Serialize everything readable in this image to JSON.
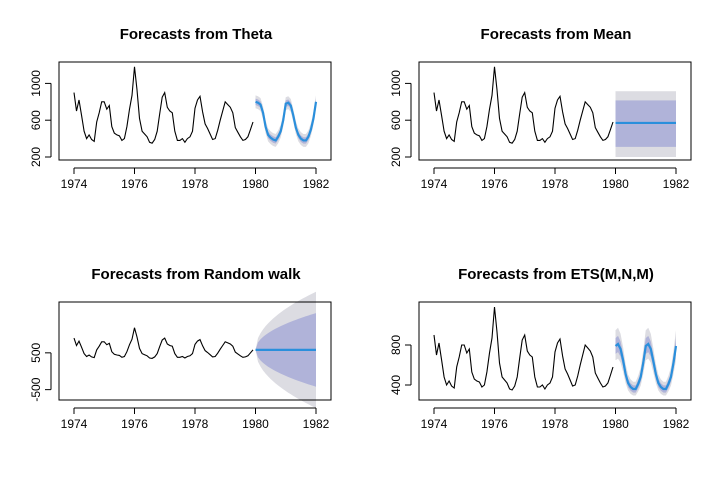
{
  "colors": {
    "history": "#000000",
    "forecast": "#2a8fdc",
    "band80": "#b0b3d9",
    "band95": "#dcdce2",
    "axis": "#000000"
  },
  "chart_data": [
    {
      "type": "line",
      "title": "Forecasts from Theta",
      "xlabel": "",
      "ylabel": "",
      "xlim": [
        1974,
        1982
      ],
      "ylim": [
        200,
        1200
      ],
      "x_ticks": [
        "1974",
        "1976",
        "1978",
        "1980",
        "1982"
      ],
      "y_ticks": [
        "200",
        "600",
        "1000"
      ],
      "history": {
        "start": 1974,
        "step": 0.08333,
        "values": [
          900,
          700,
          820,
          650,
          480,
          400,
          440,
          390,
          370,
          580,
          680,
          800,
          800,
          720,
          760,
          530,
          460,
          440,
          430,
          380,
          400,
          530,
          720,
          870,
          1180,
          930,
          620,
          480,
          450,
          420,
          360,
          350,
          390,
          480,
          670,
          850,
          900,
          740,
          700,
          680,
          480,
          380,
          380,
          400,
          360,
          400,
          420,
          480,
          730,
          820,
          860,
          690,
          560,
          510,
          450,
          390,
          400,
          490,
          600,
          700,
          800,
          770,
          740,
          680,
          520,
          470,
          420,
          380,
          390,
          420,
          500,
          580
        ]
      },
      "forecast": {
        "start": 1980,
        "step": 0.08333,
        "mean": [
          800,
          790,
          770,
          680,
          530,
          440,
          410,
          390,
          380,
          420,
          480,
          600,
          780,
          790,
          760,
          650,
          520,
          440,
          400,
          380,
          380,
          420,
          500,
          620,
          800
        ],
        "lo80_offset": 35,
        "hi80_offset": 35,
        "lo95_offset": 70,
        "hi95_offset": 70
      }
    },
    {
      "type": "line",
      "title": "Forecasts from Mean",
      "xlabel": "",
      "ylabel": "",
      "xlim": [
        1974,
        1982
      ],
      "ylim": [
        200,
        1200
      ],
      "x_ticks": [
        "1974",
        "1976",
        "1978",
        "1980",
        "1982"
      ],
      "y_ticks": [
        "200",
        "600",
        "1000"
      ],
      "history": {
        "start": 1974,
        "step": 0.08333,
        "values": [
          900,
          700,
          820,
          650,
          480,
          400,
          440,
          390,
          370,
          580,
          680,
          800,
          800,
          720,
          760,
          530,
          460,
          440,
          430,
          380,
          400,
          530,
          720,
          870,
          1180,
          930,
          620,
          480,
          450,
          420,
          360,
          350,
          390,
          480,
          670,
          850,
          900,
          740,
          700,
          680,
          480,
          380,
          380,
          400,
          360,
          400,
          420,
          480,
          730,
          820,
          860,
          690,
          560,
          510,
          450,
          390,
          400,
          490,
          600,
          700,
          800,
          770,
          740,
          680,
          520,
          470,
          420,
          380,
          390,
          420,
          500,
          580
        ]
      },
      "forecast": {
        "start": 1980,
        "end": 1982,
        "mean": 570,
        "lo80": 310,
        "hi80": 815,
        "lo95": 200,
        "hi95": 915
      }
    },
    {
      "type": "line",
      "title": "Forecasts from Random walk",
      "xlabel": "",
      "ylabel": "",
      "xlim": [
        1974,
        1982
      ],
      "ylim": [
        -700,
        1800
      ],
      "x_ticks": [
        "1974",
        "1976",
        "1978",
        "1980",
        "1982"
      ],
      "y_ticks": [
        "-500",
        "500"
      ],
      "history": {
        "start": 1974,
        "step": 0.08333,
        "values": [
          900,
          700,
          820,
          650,
          480,
          400,
          440,
          390,
          370,
          580,
          680,
          800,
          800,
          720,
          760,
          530,
          460,
          440,
          430,
          380,
          400,
          530,
          720,
          870,
          1180,
          930,
          620,
          480,
          450,
          420,
          360,
          350,
          390,
          480,
          670,
          850,
          900,
          740,
          700,
          680,
          480,
          380,
          380,
          400,
          360,
          400,
          420,
          480,
          730,
          820,
          860,
          690,
          560,
          510,
          450,
          390,
          400,
          490,
          600,
          700,
          800,
          770,
          740,
          680,
          520,
          470,
          420,
          380,
          390,
          420,
          500,
          580
        ]
      },
      "forecast": {
        "start": 1980,
        "end": 1982,
        "mean": 580,
        "spread80_end": 1000,
        "spread95_end": 1580
      }
    },
    {
      "type": "line",
      "title": "Forecasts from ETS(M,N,M)",
      "xlabel": "",
      "ylabel": "",
      "xlim": [
        1974,
        1982
      ],
      "ylim": [
        280,
        1200
      ],
      "x_ticks": [
        "1974",
        "1976",
        "1978",
        "1980",
        "1982"
      ],
      "y_ticks": [
        "400",
        "800"
      ],
      "history": {
        "start": 1974,
        "step": 0.08333,
        "values": [
          900,
          700,
          820,
          650,
          480,
          400,
          440,
          390,
          370,
          580,
          680,
          800,
          800,
          720,
          760,
          530,
          460,
          440,
          430,
          380,
          400,
          530,
          720,
          870,
          1180,
          930,
          620,
          480,
          450,
          420,
          360,
          350,
          390,
          480,
          670,
          850,
          900,
          740,
          700,
          680,
          480,
          380,
          380,
          400,
          360,
          400,
          420,
          480,
          730,
          820,
          860,
          690,
          560,
          510,
          450,
          390,
          400,
          490,
          600,
          700,
          800,
          770,
          740,
          680,
          520,
          470,
          420,
          380,
          390,
          420,
          500,
          580
        ]
      },
      "forecast": {
        "start": 1980,
        "step": 0.08333,
        "mean": [
          790,
          810,
          760,
          650,
          510,
          420,
          380,
          360,
          360,
          410,
          480,
          620,
          790,
          810,
          760,
          640,
          510,
          420,
          380,
          360,
          360,
          410,
          480,
          620,
          790
        ],
        "lo80_frac": 0.1,
        "hi80_frac": 0.1,
        "lo95_frac": 0.18,
        "hi95_frac": 0.2
      }
    }
  ]
}
